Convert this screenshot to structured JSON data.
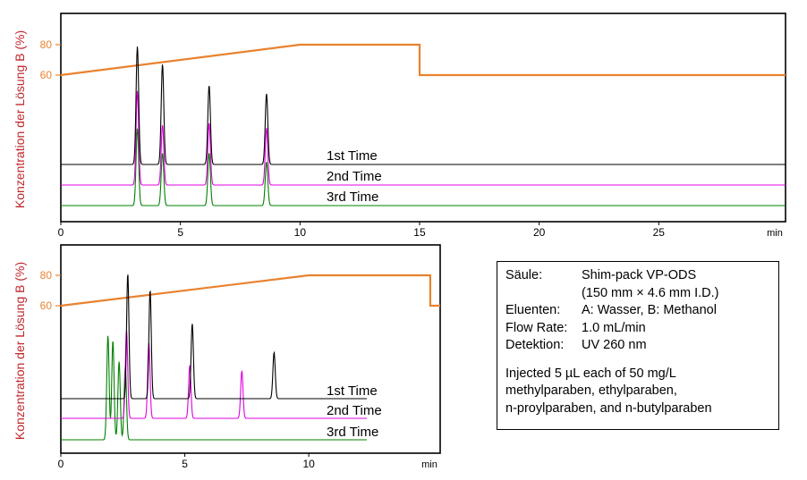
{
  "chart_data": [
    {
      "type": "line",
      "ylabel": "Konzentration der Lösung B  (%)",
      "xunit": "min",
      "xlim": [
        0,
        30.3
      ],
      "x_ticks": [
        0,
        5,
        10,
        15,
        20,
        25
      ],
      "y_ticks": [
        60,
        80
      ],
      "grid": false,
      "gradient": {
        "color": "#e9822f",
        "x": [
          0,
          10,
          15,
          15,
          30.3
        ],
        "y": [
          60,
          80,
          80,
          60,
          60
        ]
      },
      "peaks_min": [
        3.2,
        4.25,
        6.2,
        8.6
      ],
      "series": [
        {
          "name": "1st Time",
          "color": "#000000",
          "peak_heights": [
            1.0,
            0.85,
            0.67,
            0.6
          ]
        },
        {
          "name": "2nd Time",
          "color": "#e000e0",
          "peak_heights": [
            0.94,
            0.6,
            0.62,
            0.57
          ]
        },
        {
          "name": "3rd Time",
          "color": "#008000",
          "peak_heights": [
            0.88,
            0.6,
            0.6,
            0.5
          ]
        }
      ]
    },
    {
      "type": "line",
      "ylabel": "Konzentration der Lösung B  (%)",
      "xunit": "min",
      "xlim": [
        0,
        15.3
      ],
      "x_ticks": [
        0,
        5,
        10
      ],
      "y_ticks": [
        60,
        80
      ],
      "grid": false,
      "gradient": {
        "color": "#e9822f",
        "x": [
          0,
          10,
          14.9,
          14.9,
          15.3
        ],
        "y": [
          60,
          80,
          80,
          60,
          60
        ]
      },
      "series": [
        {
          "name": "1st Time",
          "color": "#000000",
          "peaks_min": [
            2.7,
            3.6,
            5.3,
            8.6
          ],
          "peak_heights": [
            1.0,
            0.87,
            0.6,
            0.37
          ]
        },
        {
          "name": "2nd Time",
          "color": "#e000e0",
          "peaks_min": [
            2.65,
            3.55,
            5.2,
            7.3
          ],
          "peak_heights": [
            0.93,
            0.8,
            0.56,
            0.5
          ]
        },
        {
          "name": "3rd Time",
          "color": "#008000",
          "peaks_min": [
            1.9,
            2.1,
            2.35,
            2.6
          ],
          "peak_heights": [
            1.0,
            0.95,
            0.75,
            0.7
          ]
        }
      ]
    }
  ],
  "info": {
    "rows": [
      {
        "key": "Säule:",
        "value": "Shim-pack VP-ODS"
      },
      {
        "key": "",
        "value": "(150 mm × 4.6 mm I.D.)"
      },
      {
        "key": "Eluenten:",
        "value": "A: Wasser, B: Methanol"
      },
      {
        "key": "Flow Rate:",
        "value": "1.0 mL/min"
      },
      {
        "key": "Detektion:",
        "value": "UV 260 nm"
      }
    ],
    "note": [
      "Injected 5 µL each of 50 mg/L",
      "methylparaben, ethylparaben,",
      "n-proylparaben, and n-butylparaben"
    ]
  }
}
